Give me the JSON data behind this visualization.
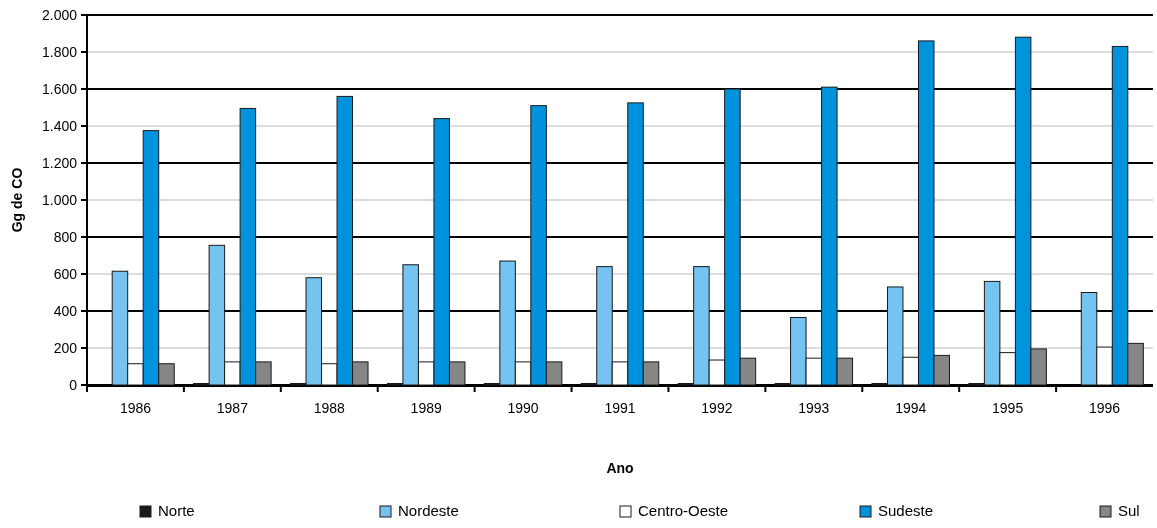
{
  "chart_data": {
    "type": "bar",
    "xlabel": "Ano",
    "ylabel": "Gg de CO",
    "categories": [
      "1986",
      "1987",
      "1988",
      "1989",
      "1990",
      "1991",
      "1992",
      "1993",
      "1994",
      "1995",
      "1996"
    ],
    "series": [
      {
        "name": "Norte",
        "color": "#1a1a1a",
        "values": [
          0,
          8,
          8,
          8,
          8,
          8,
          8,
          8,
          8,
          8,
          0
        ]
      },
      {
        "name": "Nordeste",
        "color": "#75c3f0",
        "values": [
          615,
          755,
          580,
          650,
          670,
          640,
          640,
          365,
          530,
          560,
          500
        ]
      },
      {
        "name": "Centro-Oeste",
        "color": "#ffffff",
        "values": [
          115,
          125,
          115,
          125,
          125,
          125,
          135,
          145,
          150,
          175,
          205
        ]
      },
      {
        "name": "Sudeste",
        "color": "#0093dd",
        "values": [
          1375,
          1495,
          1560,
          1440,
          1510,
          1525,
          1600,
          1610,
          1860,
          1880,
          1830
        ]
      },
      {
        "name": "Sul",
        "color": "#868686",
        "values": [
          115,
          125,
          125,
          125,
          125,
          125,
          145,
          145,
          160,
          195,
          225
        ]
      }
    ],
    "ylim": [
      0,
      2000
    ],
    "yticks": [
      {
        "value": 0,
        "label": "0"
      },
      {
        "value": 200,
        "label": "200"
      },
      {
        "value": 400,
        "label": "400"
      },
      {
        "value": 600,
        "label": "600"
      },
      {
        "value": 800,
        "label": "800"
      },
      {
        "value": 1000,
        "label": "1.000"
      },
      {
        "value": 1200,
        "label": "1.200"
      },
      {
        "value": 1400,
        "label": "1.400"
      },
      {
        "value": 1600,
        "label": "1.600"
      },
      {
        "value": 1800,
        "label": "1.800"
      },
      {
        "value": 2000,
        "label": "2.000"
      }
    ],
    "grid": "y",
    "legend": "bottom"
  }
}
